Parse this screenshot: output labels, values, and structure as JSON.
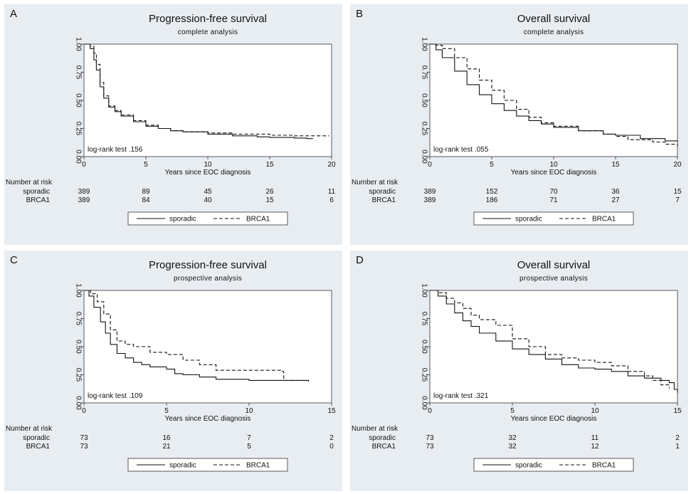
{
  "chart_data": [
    {
      "panel": "A",
      "type": "line",
      "title": "Progression-free survival",
      "subtitle": "complete analysis",
      "xlabel": "Years since EOC diagnosis",
      "ylabel": "",
      "xlim": [
        0,
        20
      ],
      "ylim": [
        0,
        1
      ],
      "xticks": [
        "0",
        "5",
        "10",
        "15",
        "20"
      ],
      "yticks": [
        "0.00",
        "0.25",
        "0.50",
        "0.75",
        "1.00"
      ],
      "annotation": "log-rank test .156",
      "risk_table": {
        "header": "Number at risk",
        "rows": [
          {
            "label": "sporadic",
            "values": [
              "389",
              "89",
              "45",
              "26",
              "11"
            ]
          },
          {
            "label": "BRCA1",
            "values": [
              "389",
              "84",
              "40",
              "15",
              "6"
            ]
          }
        ]
      },
      "legend": [
        "sporadic",
        "BRCA1"
      ],
      "series": [
        {
          "name": "sporadic",
          "style": "solid",
          "x": [
            0,
            0.5,
            0.8,
            1,
            1.3,
            1.6,
            2,
            2.5,
            3,
            4,
            5,
            6,
            7,
            8,
            10,
            12,
            14,
            15,
            16,
            17,
            18,
            18.5
          ],
          "y": [
            1,
            0.96,
            0.86,
            0.77,
            0.62,
            0.52,
            0.44,
            0.4,
            0.36,
            0.31,
            0.27,
            0.25,
            0.23,
            0.22,
            0.2,
            0.185,
            0.175,
            0.17,
            0.17,
            0.165,
            0.16,
            0.16
          ]
        },
        {
          "name": "BRCA1",
          "style": "dashed",
          "x": [
            0,
            0.5,
            0.8,
            1,
            1.3,
            1.6,
            2,
            2.5,
            3,
            4,
            5,
            6,
            7,
            8,
            10,
            12,
            15,
            17,
            19.8
          ],
          "y": [
            1,
            0.98,
            0.92,
            0.82,
            0.66,
            0.54,
            0.45,
            0.41,
            0.37,
            0.32,
            0.28,
            0.25,
            0.23,
            0.22,
            0.21,
            0.2,
            0.19,
            0.185,
            0.185
          ]
        }
      ]
    },
    {
      "panel": "B",
      "type": "line",
      "title": "Overall survival",
      "subtitle": "complete analysis",
      "xlabel": "Years since EOC diagnosis",
      "ylabel": "",
      "xlim": [
        0,
        20
      ],
      "ylim": [
        0,
        1
      ],
      "xticks": [
        "0",
        "5",
        "10",
        "15",
        "20"
      ],
      "yticks": [
        "0.00",
        "0.25",
        "0.50",
        "0.75",
        "1.00"
      ],
      "annotation": "log-rank test .055",
      "risk_table": {
        "header": "Number at risk",
        "rows": [
          {
            "label": "sporadic",
            "values": [
              "389",
              "152",
              "70",
              "36",
              "15"
            ]
          },
          {
            "label": "BRCA1",
            "values": [
              "389",
              "186",
              "71",
              "27",
              "7"
            ]
          }
        ]
      },
      "legend": [
        "sporadic",
        "BRCA1"
      ],
      "series": [
        {
          "name": "sporadic",
          "style": "solid",
          "x": [
            0,
            0.5,
            1,
            2,
            3,
            4,
            5,
            6,
            7,
            8,
            9,
            10,
            12,
            14,
            15,
            17,
            19,
            20
          ],
          "y": [
            1,
            0.95,
            0.88,
            0.76,
            0.64,
            0.55,
            0.47,
            0.41,
            0.36,
            0.32,
            0.29,
            0.26,
            0.23,
            0.2,
            0.19,
            0.16,
            0.14,
            0.13
          ]
        },
        {
          "name": "BRCA1",
          "style": "dashed",
          "x": [
            0,
            0.5,
            1,
            2,
            3,
            4,
            5,
            6,
            7,
            8,
            9,
            10,
            12,
            14,
            15,
            16,
            18,
            19,
            20
          ],
          "y": [
            1,
            0.99,
            0.96,
            0.88,
            0.78,
            0.68,
            0.59,
            0.5,
            0.42,
            0.35,
            0.3,
            0.27,
            0.23,
            0.2,
            0.18,
            0.15,
            0.13,
            0.11,
            0.09
          ]
        }
      ]
    },
    {
      "panel": "C",
      "type": "line",
      "title": "Progression-free survival",
      "subtitle": "prospective analysis",
      "xlabel": "Years since EOC diagnosis",
      "ylabel": "",
      "xlim": [
        0,
        15
      ],
      "ylim": [
        0,
        1
      ],
      "xticks": [
        "0",
        "5",
        "10",
        "15"
      ],
      "yticks": [
        "0.00",
        "0.25",
        "0.50",
        "0.75",
        "1.00"
      ],
      "annotation": "log-rank test .109",
      "risk_table": {
        "header": "Number at risk",
        "rows": [
          {
            "label": "sporadic",
            "values": [
              "73",
              "16",
              "7",
              "2"
            ]
          },
          {
            "label": "BRCA1",
            "values": [
              "73",
              "21",
              "5",
              "0"
            ]
          }
        ]
      },
      "legend": [
        "sporadic",
        "BRCA1"
      ],
      "series": [
        {
          "name": "sporadic",
          "style": "solid",
          "x": [
            0,
            0.3,
            0.6,
            1,
            1.3,
            1.6,
            2,
            2.5,
            3,
            3.5,
            4,
            5,
            5.5,
            6,
            7,
            8,
            10,
            12,
            13,
            13.6
          ],
          "y": [
            1,
            0.95,
            0.85,
            0.72,
            0.62,
            0.52,
            0.44,
            0.4,
            0.36,
            0.34,
            0.32,
            0.3,
            0.26,
            0.25,
            0.23,
            0.21,
            0.2,
            0.2,
            0.2,
            0.19
          ]
        },
        {
          "name": "BRCA1",
          "style": "dashed",
          "x": [
            0,
            0.4,
            0.8,
            1.2,
            1.6,
            2,
            2.5,
            3,
            4,
            5,
            5.5,
            6,
            7,
            8,
            10,
            11.5,
            12,
            12.1,
            13,
            13.6
          ],
          "y": [
            1,
            0.97,
            0.9,
            0.79,
            0.65,
            0.55,
            0.52,
            0.5,
            0.45,
            0.43,
            0.43,
            0.38,
            0.34,
            0.29,
            0.29,
            0.29,
            0.28,
            0.2,
            0.2,
            0.19
          ]
        }
      ]
    },
    {
      "panel": "D",
      "type": "line",
      "title": "Overall survival",
      "subtitle": "prospective analysis",
      "xlabel": "Years since EOC diagnosis",
      "ylabel": "",
      "xlim": [
        0,
        15
      ],
      "ylim": [
        0,
        1
      ],
      "xticks": [
        "0",
        "5",
        "10",
        "15"
      ],
      "yticks": [
        "0.00",
        "0.25",
        "0.50",
        "0.75",
        "1.00"
      ],
      "annotation": "log-rank test .321",
      "risk_table": {
        "header": "Number at risk",
        "rows": [
          {
            "label": "sporadic",
            "values": [
              "73",
              "32",
              "11",
              "2"
            ]
          },
          {
            "label": "BRCA1",
            "values": [
              "73",
              "32",
              "12",
              "1"
            ]
          }
        ]
      },
      "legend": [
        "sporadic",
        "BRCA1"
      ],
      "series": [
        {
          "name": "sporadic",
          "style": "solid",
          "x": [
            0,
            0.5,
            1,
            1.5,
            2,
            2.5,
            3,
            4,
            5,
            6,
            7,
            8,
            9,
            10,
            11,
            12,
            13,
            14,
            14.5,
            14.8,
            15
          ],
          "y": [
            1,
            0.95,
            0.88,
            0.8,
            0.73,
            0.68,
            0.62,
            0.55,
            0.48,
            0.43,
            0.39,
            0.34,
            0.31,
            0.3,
            0.28,
            0.24,
            0.22,
            0.2,
            0.18,
            0.12,
            0.09
          ]
        },
        {
          "name": "BRCA1",
          "style": "dashed",
          "x": [
            0,
            0.5,
            1,
            1.5,
            2,
            2.5,
            3,
            4,
            5,
            6,
            7,
            8,
            9,
            10,
            11,
            12,
            13,
            13.5,
            14,
            14.5
          ],
          "y": [
            1,
            0.98,
            0.93,
            0.89,
            0.84,
            0.78,
            0.74,
            0.69,
            0.57,
            0.5,
            0.43,
            0.4,
            0.38,
            0.36,
            0.33,
            0.28,
            0.24,
            0.2,
            0.16,
            0.13
          ]
        }
      ]
    }
  ]
}
